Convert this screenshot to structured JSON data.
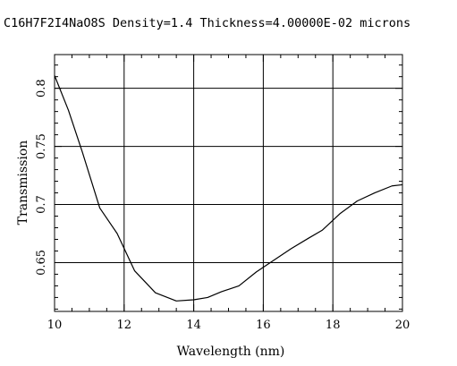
{
  "chart_data": {
    "type": "line",
    "title": "C16H7F2I4NaO8S Density=1.4 Thickness=4.00000E-02 microns",
    "xlabel": "Wavelength (nm)",
    "ylabel": "Transmission",
    "xlim": [
      10,
      20
    ],
    "ylim": [
      0.608,
      0.829
    ],
    "grid": true,
    "x_ticks": [
      10,
      12,
      14,
      16,
      18,
      20
    ],
    "y_ticks": [
      0.65,
      0.7,
      0.75,
      0.8
    ],
    "x_tick_labels": [
      "10",
      "12",
      "14",
      "16",
      "18",
      "20"
    ],
    "y_tick_labels": [
      "0.65",
      "0.7",
      "0.75",
      "0.8"
    ],
    "series": [
      {
        "x": [
          10.0,
          10.4,
          10.8,
          11.3,
          11.8,
          12.3,
          12.9,
          13.5,
          14.0,
          14.4,
          14.8,
          15.3,
          15.8,
          16.3,
          16.8,
          17.3,
          17.7,
          18.2,
          18.7,
          19.2,
          19.7,
          20.0
        ],
        "y": [
          0.811,
          0.781,
          0.745,
          0.697,
          0.675,
          0.643,
          0.624,
          0.617,
          0.618,
          0.62,
          0.625,
          0.63,
          0.642,
          0.652,
          0.662,
          0.671,
          0.678,
          0.692,
          0.703,
          0.71,
          0.716,
          0.717
        ]
      }
    ]
  }
}
